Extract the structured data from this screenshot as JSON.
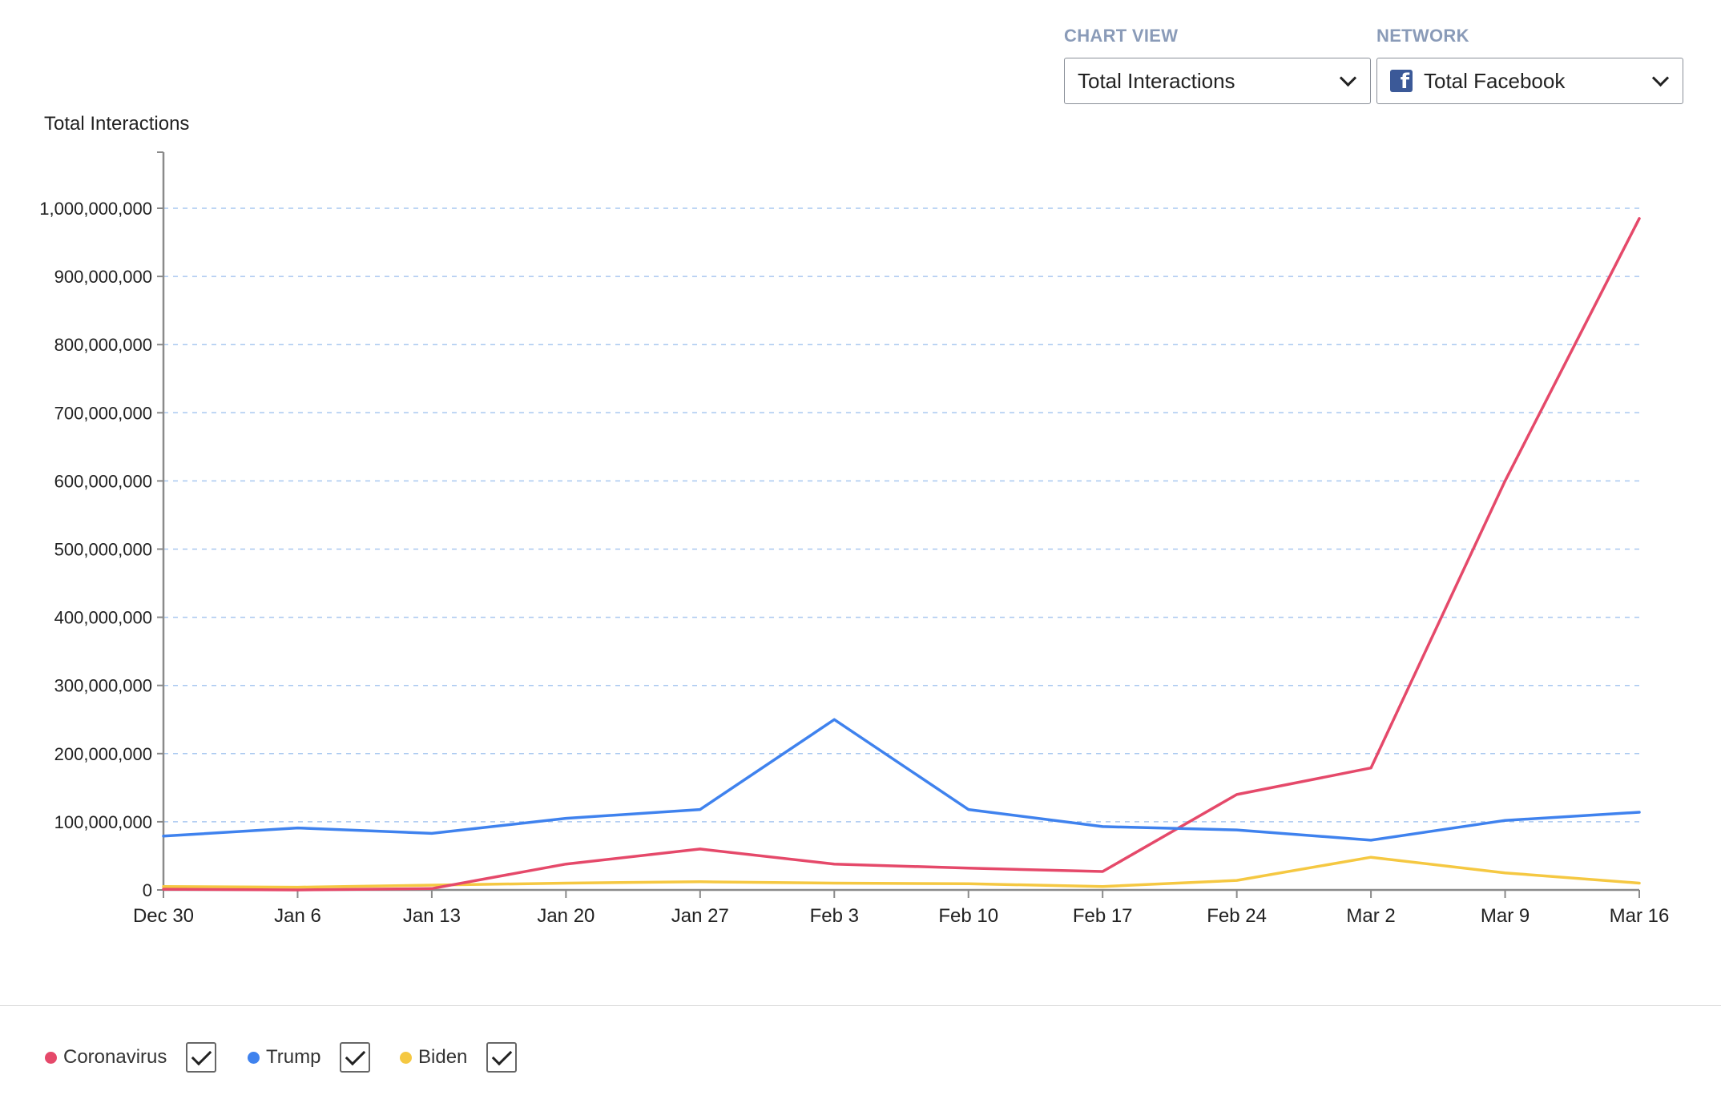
{
  "controls": {
    "chart_view": {
      "label": "CHART VIEW",
      "value": "Total Interactions"
    },
    "network": {
      "label": "NETWORK",
      "value": "Total Facebook",
      "icon": "facebook-icon"
    }
  },
  "legend": [
    {
      "label": "Coronavirus",
      "color": "#e5496a",
      "checked": true
    },
    {
      "label": "Trump",
      "color": "#3f82ee",
      "checked": true
    },
    {
      "label": "Biden",
      "color": "#f5c842",
      "checked": true
    }
  ],
  "chart_data": {
    "type": "line",
    "title": "",
    "ylabel": "Total Interactions",
    "xlabel": "",
    "x": [
      "Dec 30",
      "Jan 6",
      "Jan 13",
      "Jan 20",
      "Jan 27",
      "Feb 3",
      "Feb 10",
      "Feb 17",
      "Feb 24",
      "Mar 2",
      "Mar 9",
      "Mar 16"
    ],
    "ylim": [
      0,
      1000000000
    ],
    "yticks": [
      0,
      100000000,
      200000000,
      300000000,
      400000000,
      500000000,
      600000000,
      700000000,
      800000000,
      900000000,
      1000000000
    ],
    "ytick_labels": [
      "0",
      "100,000,000",
      "200,000,000",
      "300,000,000",
      "400,000,000",
      "500,000,000",
      "600,000,000",
      "700,000,000",
      "800,000,000",
      "900,000,000",
      "1,000,000,000"
    ],
    "grid": "horizontal dashed",
    "legend_position": "bottom-left",
    "series": [
      {
        "name": "Coronavirus",
        "color": "#e5496a",
        "values": [
          1000000,
          0,
          2000000,
          38000000,
          60000000,
          38000000,
          32000000,
          27000000,
          140000000,
          179000000,
          600000000,
          985000000
        ]
      },
      {
        "name": "Trump",
        "color": "#3f82ee",
        "values": [
          79000000,
          91000000,
          83000000,
          105000000,
          118000000,
          250000000,
          118000000,
          93000000,
          88000000,
          73000000,
          102000000,
          114000000
        ]
      },
      {
        "name": "Biden",
        "color": "#f5c842",
        "values": [
          5000000,
          4000000,
          7000000,
          10000000,
          12000000,
          10000000,
          9000000,
          5000000,
          14000000,
          48000000,
          25000000,
          10000000
        ]
      }
    ]
  }
}
